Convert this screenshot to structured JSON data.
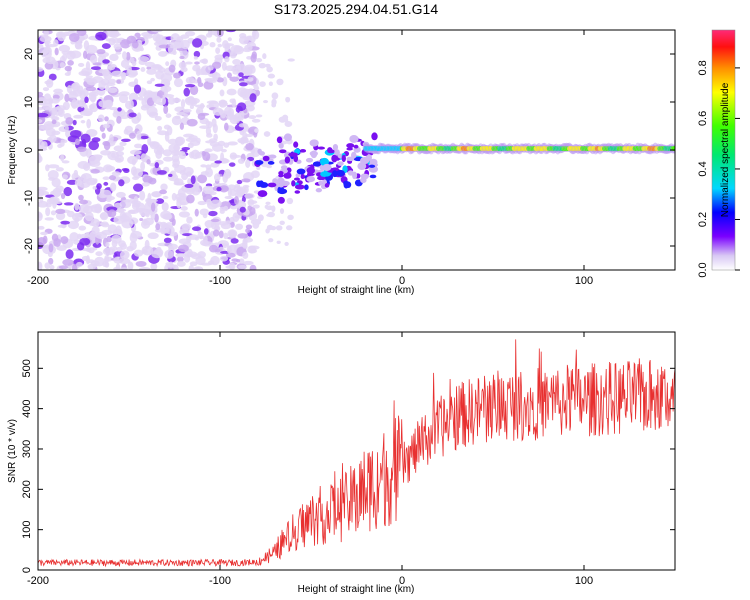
{
  "title": "S173.2025.294.04.51.G14",
  "chart_data": [
    {
      "type": "heatmap",
      "xlabel": "Height of straight line (km)",
      "ylabel": "Frequency (Hz)",
      "xlim": [
        -200,
        150
      ],
      "ylim": [
        -25,
        25
      ],
      "xticks": [
        -200,
        -100,
        0,
        100
      ],
      "yticks": [
        -20,
        -10,
        0,
        10,
        20
      ],
      "colorbar": {
        "label": "Normalized spectral amplitude",
        "range": [
          0,
          0.95
        ],
        "ticks": [
          0,
          0.2,
          0.4,
          0.6,
          0.8
        ],
        "tick_labels": [
          "0.0",
          "0.2",
          "0.4",
          "0.6",
          "0.8"
        ]
      },
      "regions": [
        {
          "name": "noise",
          "x_range": [
            -200,
            -80
          ],
          "freq_range": [
            -25,
            25
          ],
          "amplitude": 0.05
        },
        {
          "name": "onset",
          "x_range": [
            -80,
            -15
          ],
          "freq_range": [
            -14,
            5
          ],
          "amplitude": 0.15
        },
        {
          "name": "signal-line",
          "x_range": [
            0,
            150
          ],
          "frequency": 0,
          "amplitude": 0.9
        }
      ]
    },
    {
      "type": "line",
      "xlabel": "Height of straight line (km)",
      "ylabel": "SNR (10 * v/v)",
      "xlim": [
        -200,
        150
      ],
      "ylim": [
        0,
        590
      ],
      "xticks": [
        -200,
        -100,
        0,
        100
      ],
      "yticks": [
        0,
        100,
        200,
        300,
        400,
        500
      ],
      "color": "#e83030",
      "series": [
        {
          "name": "SNR",
          "x": [
            -200,
            -180,
            -160,
            -140,
            -120,
            -100,
            -90,
            -80,
            -75,
            -70,
            -65,
            -60,
            -55,
            -50,
            -45,
            -40,
            -35,
            -30,
            -25,
            -20,
            -15,
            -10,
            -5,
            0,
            10,
            20,
            30,
            40,
            50,
            60,
            70,
            80,
            90,
            100,
            110,
            120,
            130,
            140,
            150
          ],
          "values": [
            18,
            18,
            18,
            18,
            18,
            18,
            18,
            20,
            30,
            45,
            70,
            90,
            110,
            125,
            135,
            140,
            150,
            160,
            180,
            200,
            215,
            230,
            240,
            255,
            310,
            350,
            380,
            395,
            405,
            410,
            410,
            415,
            420,
            420,
            425,
            425,
            430,
            430,
            430
          ]
        }
      ]
    }
  ]
}
